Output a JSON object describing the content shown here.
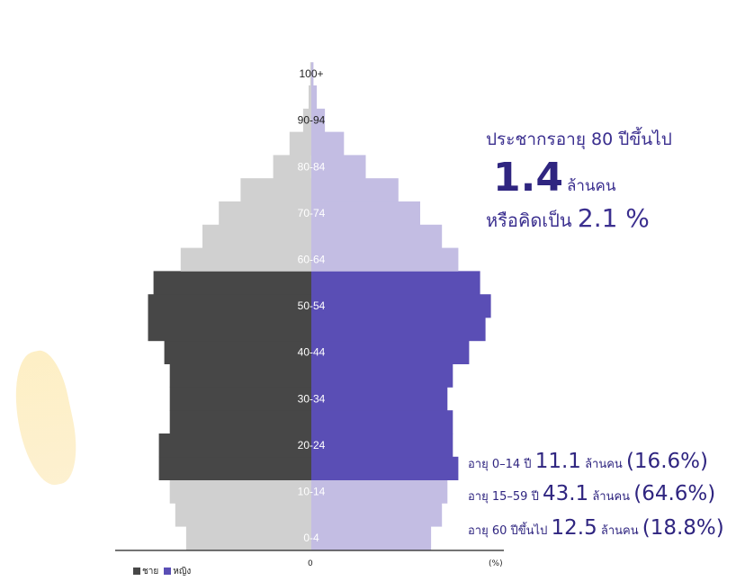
{
  "chart_data": {
    "type": "bar",
    "orientation": "horizontal",
    "categories": [
      "0-4",
      "5-9",
      "10-14",
      "15-19",
      "20-24",
      "25-29",
      "30-34",
      "35-39",
      "40-44",
      "45-49",
      "50-54",
      "55-59",
      "60-64",
      "65-69",
      "70-74",
      "75-79",
      "80-84",
      "85-89",
      "90-94",
      "95-99",
      "100+"
    ],
    "age_labels_shown": [
      "100+",
      "90-94",
      "80-84",
      "70-74",
      "60-64",
      "50-54",
      "40-44",
      "30-34",
      "20-24",
      "10-14",
      "0-4"
    ],
    "series": [
      {
        "name": "ชาย",
        "values": [
          2.3,
          2.5,
          2.6,
          2.8,
          2.8,
          2.6,
          2.6,
          2.6,
          2.7,
          3.0,
          3.0,
          2.9,
          2.4,
          2.0,
          1.7,
          1.3,
          0.7,
          0.4,
          0.15,
          0.05,
          0.02
        ]
      },
      {
        "name": "หญิง",
        "values": [
          2.2,
          2.4,
          2.5,
          2.7,
          2.6,
          2.6,
          2.5,
          2.6,
          2.9,
          3.2,
          3.3,
          3.1,
          2.7,
          2.4,
          2.0,
          1.6,
          1.0,
          0.6,
          0.25,
          0.1,
          0.04
        ]
      }
    ],
    "colors": {
      "male_working": "#474747",
      "male_other": "#d0d0d0",
      "female_working": "#5a4eb5",
      "female_other": "#c3bde3"
    },
    "x_axis_labels": {
      "center": "0",
      "unit": "(%)"
    },
    "xlim": [
      -3.5,
      3.5
    ]
  },
  "annotations": {
    "title": "ประชากรอายุ 80 ปีขึ้นไป",
    "big_value": "1.4",
    "big_unit": "ล้านคน",
    "pct_prefix": "หรือคิดเป็น",
    "pct_value": "2.1 %"
  },
  "summary": [
    {
      "prefix": "อายุ 0–14 ปี",
      "value": "11.1",
      "unit": "ล้านคน",
      "pct": "(16.6%)"
    },
    {
      "prefix": "อายุ 15–59 ปี",
      "value": "43.1",
      "unit": "ล้านคน",
      "pct": "(64.6%)"
    },
    {
      "prefix": "อายุ 60 ปีขึ้นไป",
      "value": "12.5",
      "unit": "ล้านคน",
      "pct": "(18.8%)"
    }
  ],
  "legend": [
    {
      "label": "ชาย",
      "color": "#474747"
    },
    {
      "label": "หญิง",
      "color": "#5a4eb5"
    }
  ]
}
